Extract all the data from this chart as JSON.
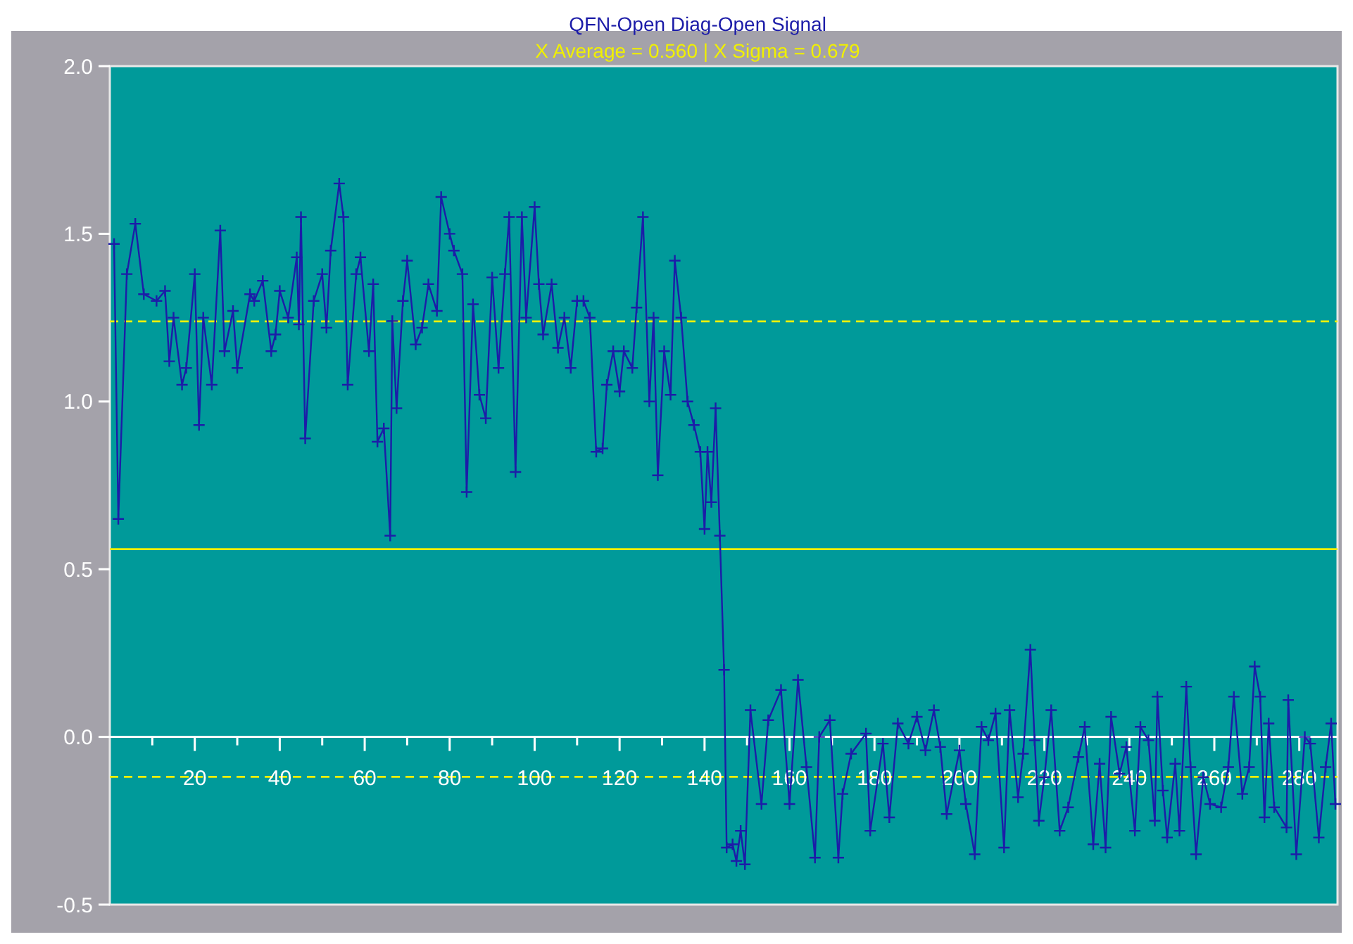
{
  "chart_data": {
    "type": "line",
    "title": "QFN-Open Diag-Open Signal",
    "subtitle": "X Average = 0.560 | X Sigma = 0.679",
    "xlim": [
      0,
      289
    ],
    "ylim": [
      -0.5,
      2.0
    ],
    "xticks": [
      {
        "value": 10,
        "label": null
      },
      20,
      {
        "value": 30,
        "label": null
      },
      40,
      {
        "value": 50,
        "label": null
      },
      60,
      {
        "value": 70,
        "label": null
      },
      80,
      {
        "value": 90,
        "label": null
      },
      100,
      {
        "value": 110,
        "label": null
      },
      120,
      {
        "value": 130,
        "label": null
      },
      140,
      {
        "value": 150,
        "label": null
      },
      160,
      {
        "value": 170,
        "label": null
      },
      180,
      {
        "value": 190,
        "label": null
      },
      200,
      {
        "value": 210,
        "label": null
      },
      220,
      {
        "value": 230,
        "label": null
      },
      240,
      {
        "value": 250,
        "label": null
      },
      260,
      {
        "value": 270,
        "label": null
      },
      280
    ],
    "yticks": [
      -0.5,
      {
        "value": 0,
        "label": "0.0"
      },
      0.5,
      {
        "value": 1,
        "label": "1.0"
      },
      1.5,
      {
        "value": 2,
        "label": "2.0"
      }
    ],
    "grid": false,
    "marker": "cross",
    "line_style": "solid",
    "ref_lines": [
      {
        "axis": "y",
        "value": 1.239,
        "color": "#f0f000",
        "line_style": "dashed"
      },
      {
        "axis": "y",
        "value": 0.56,
        "color": "#f0f000",
        "line_style": "solid"
      },
      {
        "axis": "y",
        "value": -0.119,
        "color": "#f0f000",
        "line_style": "dashed"
      }
    ],
    "series": [
      {
        "color": "#1c1ca8",
        "x": [
          1,
          2,
          4,
          6,
          8,
          11,
          13,
          14,
          15,
          17,
          18,
          20,
          21,
          22,
          24,
          26,
          27,
          29,
          30,
          33,
          34,
          36,
          38,
          39,
          40,
          42,
          44,
          44.5,
          45,
          46,
          48,
          50,
          51,
          52,
          54,
          55,
          56,
          58,
          59,
          61,
          62,
          63,
          64.5,
          66,
          66.5,
          67.5,
          69,
          70,
          72,
          73.5,
          75,
          77,
          78,
          80,
          81,
          83,
          84,
          85.5,
          87,
          88.5,
          90,
          91.5,
          93,
          94,
          95.5,
          97,
          98,
          100,
          101,
          102,
          104,
          105.5,
          107,
          108.5,
          110,
          111.5,
          113,
          114.5,
          116,
          117,
          118.5,
          120,
          121,
          123,
          124,
          125.5,
          127,
          128,
          129,
          130.5,
          132,
          133,
          134.5,
          136,
          137.5,
          139,
          140,
          140.7,
          141.6,
          142.6,
          143.6,
          144.6,
          145.2,
          146.6,
          147.5,
          148.5,
          149.5,
          150.8,
          153.4,
          155,
          158,
          160,
          162,
          164,
          166,
          167,
          169.5,
          171.5,
          172.5,
          174.5,
          178,
          179,
          182,
          183.5,
          185.5,
          188,
          190,
          192,
          194,
          195.5,
          197,
          200,
          201.5,
          203.6,
          205.2,
          206.8,
          208.5,
          210.5,
          211.8,
          213.8,
          215,
          216.7,
          217.7,
          218.7,
          220,
          221.6,
          223.6,
          225.6,
          228,
          229.5,
          231.5,
          233,
          234.4,
          235.7,
          237.7,
          239.3,
          241.3,
          242.6,
          244.5,
          246,
          246.6,
          247.9,
          248.9,
          250.8,
          251.8,
          253.4,
          254.4,
          255.7,
          257.4,
          259,
          261.6,
          263.3,
          264.6,
          266.6,
          268.2,
          269.5,
          270.8,
          271.8,
          272.8,
          274.1,
          277,
          277.4,
          279.3,
          281.3,
          282.6,
          284.6,
          286.2,
          287.5,
          288.5
        ],
        "values": [
          1.47,
          0.65,
          1.38,
          1.53,
          1.32,
          1.3,
          1.33,
          1.12,
          1.25,
          1.05,
          1.1,
          1.38,
          0.93,
          1.25,
          1.05,
          1.51,
          1.15,
          1.27,
          1.1,
          1.32,
          1.3,
          1.36,
          1.15,
          1.2,
          1.33,
          1.25,
          1.43,
          1.23,
          1.55,
          0.89,
          1.3,
          1.38,
          1.22,
          1.45,
          1.65,
          1.55,
          1.05,
          1.38,
          1.43,
          1.15,
          1.35,
          0.88,
          0.92,
          0.6,
          1.24,
          0.98,
          1.3,
          1.42,
          1.17,
          1.22,
          1.35,
          1.27,
          1.61,
          1.5,
          1.45,
          1.38,
          0.73,
          1.29,
          1.02,
          0.95,
          1.37,
          1.1,
          1.38,
          1.55,
          0.79,
          1.55,
          1.25,
          1.58,
          1.35,
          1.2,
          1.35,
          1.16,
          1.25,
          1.1,
          1.3,
          1.3,
          1.25,
          0.85,
          0.86,
          1.05,
          1.15,
          1.03,
          1.15,
          1.1,
          1.28,
          1.55,
          1.0,
          1.25,
          0.78,
          1.15,
          1.02,
          1.42,
          1.25,
          1.0,
          0.93,
          0.85,
          0.62,
          0.85,
          0.7,
          0.98,
          0.6,
          0.2,
          -0.33,
          -0.32,
          -0.37,
          -0.28,
          -0.38,
          0.08,
          -0.2,
          0.05,
          0.14,
          -0.2,
          0.17,
          -0.09,
          -0.36,
          0.0,
          0.05,
          -0.36,
          -0.17,
          -0.05,
          0.01,
          -0.28,
          -0.02,
          -0.24,
          0.04,
          -0.02,
          0.06,
          -0.04,
          0.08,
          -0.03,
          -0.23,
          -0.04,
          -0.2,
          -0.35,
          0.03,
          -0.01,
          0.07,
          -0.33,
          0.08,
          -0.18,
          -0.05,
          0.26,
          -0.01,
          -0.25,
          -0.12,
          0.08,
          -0.28,
          -0.21,
          -0.06,
          0.03,
          -0.32,
          -0.08,
          -0.33,
          0.06,
          -0.11,
          -0.03,
          -0.28,
          0.03,
          -0.01,
          -0.25,
          0.12,
          -0.16,
          -0.3,
          -0.08,
          -0.28,
          0.15,
          -0.09,
          -0.35,
          -0.12,
          -0.2,
          -0.21,
          -0.09,
          0.12,
          -0.17,
          -0.09,
          0.21,
          0.12,
          -0.24,
          0.04,
          -0.21,
          -0.27,
          0.11,
          -0.35,
          0.0,
          -0.02,
          -0.3,
          -0.09,
          0.04,
          -0.2
        ]
      }
    ]
  }
}
